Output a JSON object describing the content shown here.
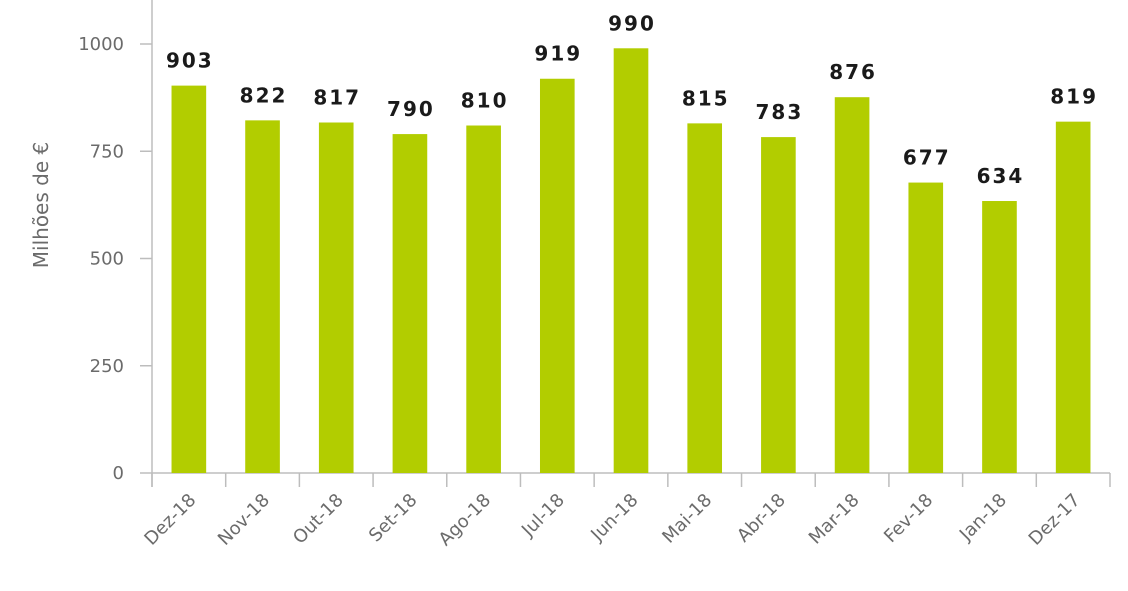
{
  "chart_data": {
    "type": "bar",
    "title": "",
    "xlabel": "",
    "ylabel": "Milhões de €",
    "categories": [
      "Dez-18",
      "Nov-18",
      "Out-18",
      "Set-18",
      "Ago-18",
      "Jul-18",
      "Jun-18",
      "Mai-18",
      "Abr-18",
      "Mar-18",
      "Fev-18",
      "Jan-18",
      "Dez-17"
    ],
    "values": [
      903,
      822,
      817,
      790,
      810,
      919,
      990,
      815,
      783,
      876,
      677,
      634,
      819
    ],
    "ylim": [
      0,
      1000
    ],
    "yticks": [
      0,
      250,
      500,
      750,
      1000
    ],
    "grid": false,
    "legend": "none",
    "bar_color": "#b2cd00",
    "axis_color": "#bdbdbd"
  }
}
